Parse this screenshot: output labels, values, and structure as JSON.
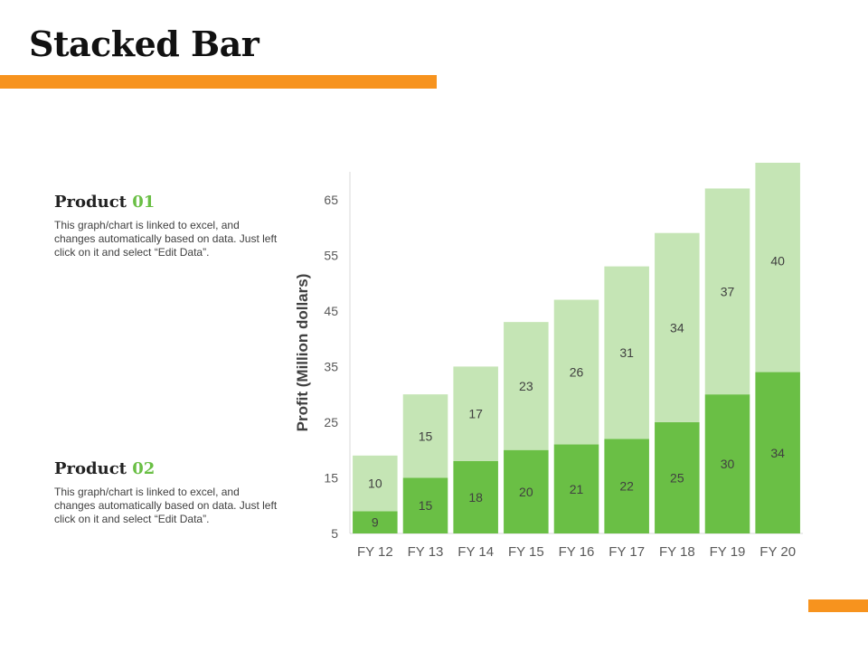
{
  "page": {
    "title": "Stacked Bar",
    "accent_color": "#F7931E"
  },
  "products": [
    {
      "label": "Product",
      "number": "01",
      "number_color": "#6ABF45",
      "description": "This graph/chart is linked to excel, and changes automatically based on data. Just left click on it and select “Edit Data”."
    },
    {
      "label": "Product",
      "number": "02",
      "number_color": "#6ABF45",
      "description": "This graph/chart is linked to excel, and changes automatically based on data. Just left click on it and select “Edit Data”."
    }
  ],
  "chart_data": {
    "type": "bar",
    "stacked": true,
    "categories": [
      "FY 12",
      "FY 13",
      "FY 14",
      "FY 15",
      "FY 16",
      "FY 17",
      "FY 18",
      "FY 19",
      "FY 20"
    ],
    "series": [
      {
        "values": [
          9,
          15,
          18,
          20,
          21,
          22,
          25,
          30,
          34
        ],
        "color": "#6ABF45"
      },
      {
        "values": [
          10,
          15,
          17,
          23,
          26,
          31,
          34,
          37,
          40
        ],
        "color": "#C5E5B5"
      }
    ],
    "ylabel": "Profit  (Million dollars)",
    "xlabel": "",
    "ylim": [
      5,
      70
    ],
    "yticks": [
      5,
      15,
      25,
      35,
      45,
      55,
      65
    ],
    "grid": false,
    "legend": "none"
  }
}
